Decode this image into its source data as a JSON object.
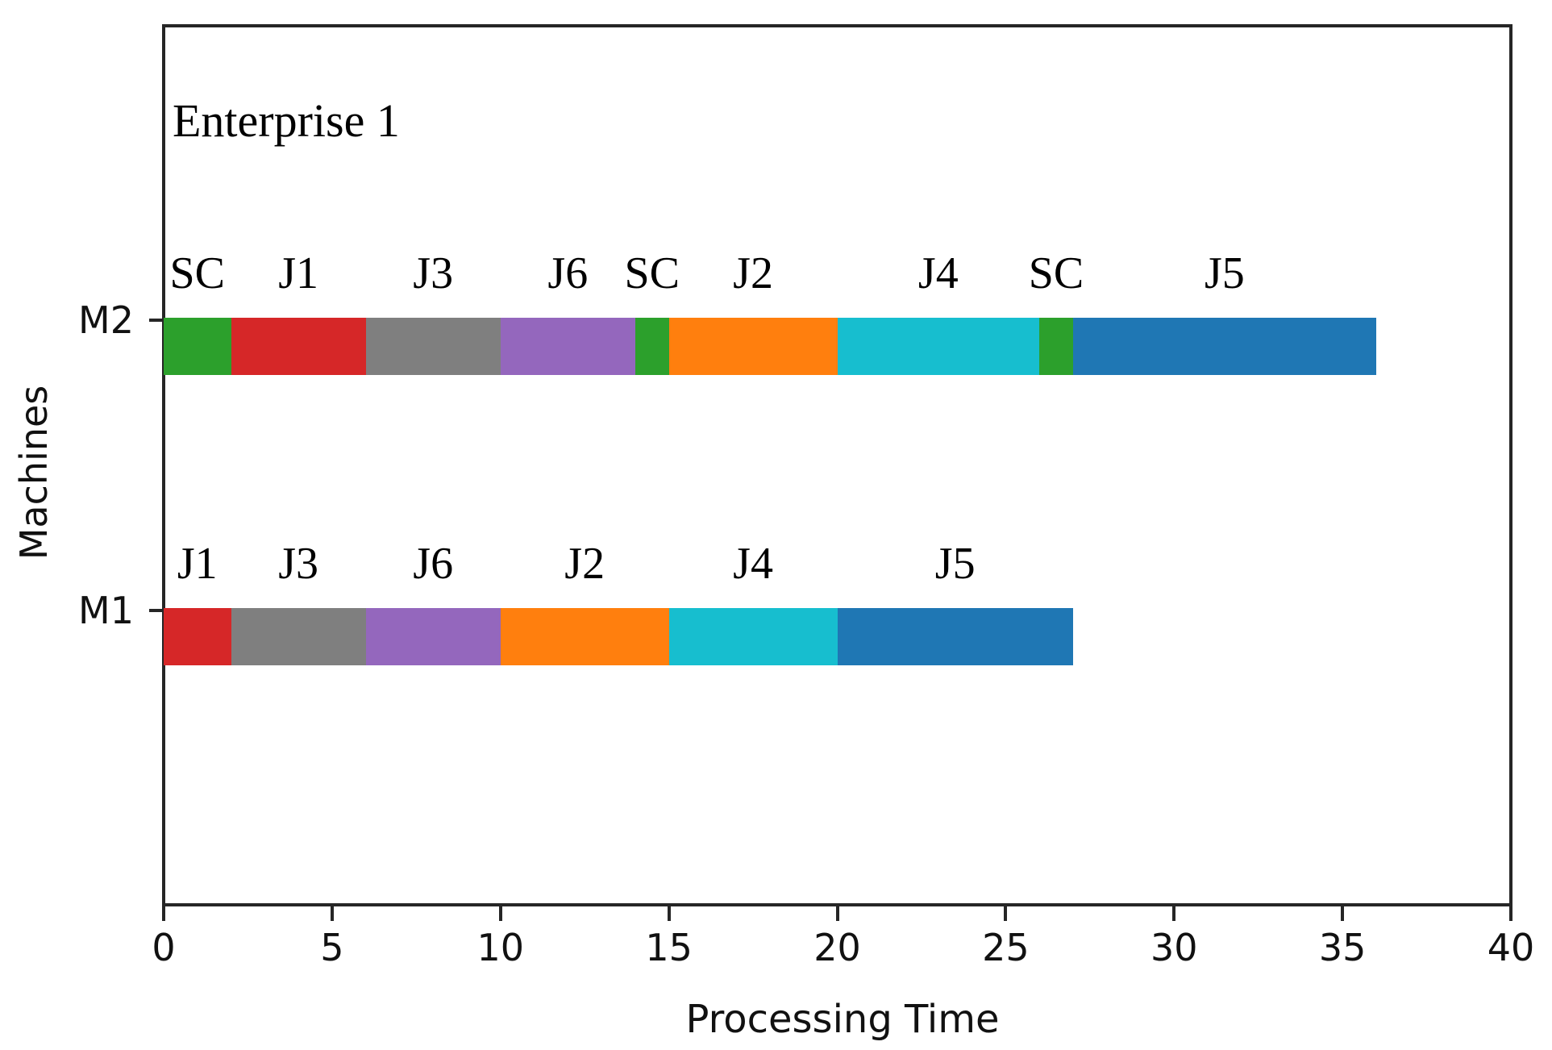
{
  "chart_data": {
    "type": "bar",
    "subtype": "gantt-schedule",
    "title": "Enterprise 1",
    "xlabel": "Processing Time",
    "ylabel": "Machines",
    "xlim": [
      0,
      40
    ],
    "xticks": [
      0,
      5,
      10,
      15,
      20,
      25,
      30,
      35,
      40
    ],
    "yticks": [
      "M2",
      "M1"
    ],
    "grid": false,
    "legend_position": "none",
    "job_colors": {
      "SC": "#2ca02c",
      "J1": "#d62728",
      "J2": "#ff7f0e",
      "J3": "#7f7f7f",
      "J4": "#17becf",
      "J5": "#1f77b4",
      "J6": "#9467bd"
    },
    "machines": [
      {
        "name": "M2",
        "segments": [
          {
            "job": "SC",
            "start": 0,
            "end": 2
          },
          {
            "job": "J1",
            "start": 2,
            "end": 6
          },
          {
            "job": "J3",
            "start": 6,
            "end": 10
          },
          {
            "job": "J6",
            "start": 10,
            "end": 14
          },
          {
            "job": "SC",
            "start": 14,
            "end": 15
          },
          {
            "job": "J2",
            "start": 15,
            "end": 20
          },
          {
            "job": "J4",
            "start": 20,
            "end": 26
          },
          {
            "job": "SC",
            "start": 26,
            "end": 27
          },
          {
            "job": "J5",
            "start": 27,
            "end": 36
          }
        ]
      },
      {
        "name": "M1",
        "segments": [
          {
            "job": "J1",
            "start": 0,
            "end": 2
          },
          {
            "job": "J3",
            "start": 2,
            "end": 6
          },
          {
            "job": "J6",
            "start": 6,
            "end": 10
          },
          {
            "job": "J2",
            "start": 10,
            "end": 15
          },
          {
            "job": "J4",
            "start": 15,
            "end": 20
          },
          {
            "job": "J5",
            "start": 20,
            "end": 27
          }
        ]
      }
    ]
  }
}
